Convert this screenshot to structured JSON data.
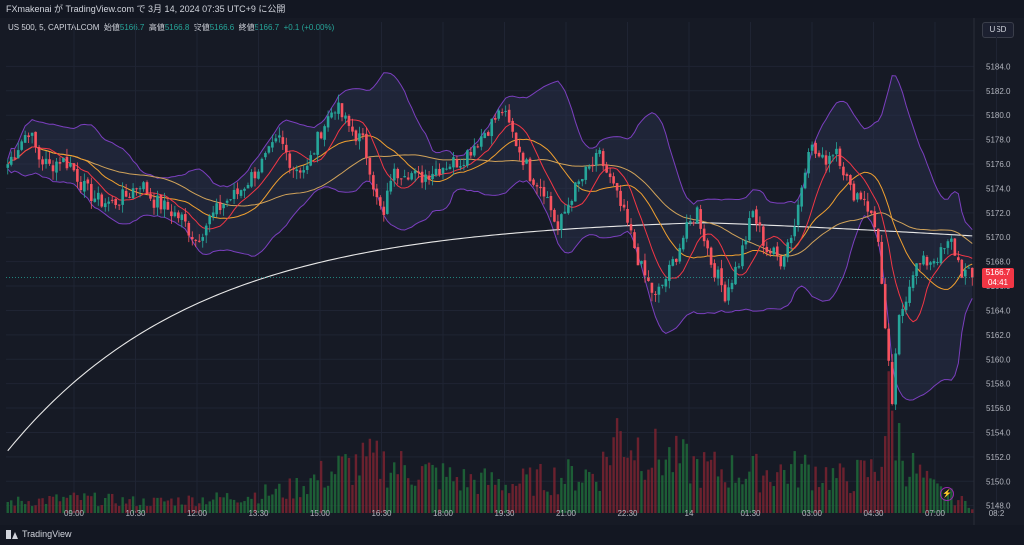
{
  "header": {
    "published_text": "FXmakenai が TradingView.com で 3月 14, 2024 07:35 UTC+9 に公開"
  },
  "legend": {
    "symbol": "US 500, 5, CAPITALCOM",
    "open_label": "始値",
    "open_value": "5166.7",
    "high_label": "高値",
    "high_value": "5166.8",
    "low_label": "安値",
    "low_value": "5166.6",
    "close_label": "終値",
    "close_value": "5166.7",
    "change": "+0.1 (+0.00%)"
  },
  "currency_button": "USD",
  "current_price": {
    "price": "5166.7",
    "countdown": "04:41"
  },
  "footer": {
    "brand": "TradingView"
  },
  "colors": {
    "background": "#161a25",
    "up": "#26a69a",
    "down": "#f7525f",
    "band": "#7b3fbf",
    "ma_fast": "#f23645",
    "ma_mid": "#f0a030",
    "ma_slow": "#d1a35a",
    "ma_long": "#e8e8e8"
  },
  "chart_data": {
    "type": "candlestick",
    "y_ticks": [
      "5184.0",
      "5182.0",
      "5180.0",
      "5178.0",
      "5176.0",
      "5174.0",
      "5172.0",
      "5170.0",
      "5168.0",
      "5166.0",
      "5164.0",
      "5162.0",
      "5160.0",
      "5158.0",
      "5156.0",
      "5154.0",
      "5152.0",
      "5150.0",
      "5148.0"
    ],
    "ylim": [
      5147.4,
      5186.0
    ],
    "x_ticks": [
      "09:00",
      "10:30",
      "12:00",
      "13:30",
      "15:00",
      "16:30",
      "18:00",
      "19:30",
      "21:00",
      "22:30",
      "14",
      "01:30",
      "03:00",
      "04:30",
      "07:00",
      "08:2"
    ],
    "price_path": [
      [
        0,
        5176.0
      ],
      [
        3,
        5177.5
      ],
      [
        6,
        5178.8
      ],
      [
        9,
        5176.5
      ],
      [
        12,
        5175.8
      ],
      [
        15,
        5176.4
      ],
      [
        18,
        5176.0
      ],
      [
        22,
        5174.0
      ],
      [
        26,
        5173.0
      ],
      [
        30,
        5172.8
      ],
      [
        34,
        5173.4
      ],
      [
        38,
        5174.5
      ],
      [
        42,
        5173.0
      ],
      [
        46,
        5172.3
      ],
      [
        50,
        5171.5
      ],
      [
        54,
        5169.8
      ],
      [
        58,
        5171.5
      ],
      [
        62,
        5172.8
      ],
      [
        66,
        5173.6
      ],
      [
        70,
        5175.0
      ],
      [
        74,
        5176.4
      ],
      [
        78,
        5178.0
      ],
      [
        82,
        5175.8
      ],
      [
        86,
        5175.6
      ],
      [
        90,
        5178.8
      ],
      [
        94,
        5180.8
      ],
      [
        98,
        5179.0
      ],
      [
        102,
        5177.8
      ],
      [
        104,
        5175.8
      ],
      [
        106,
        5173.0
      ],
      [
        108,
        5171.6
      ],
      [
        110,
        5175.0
      ],
      [
        114,
        5175.6
      ],
      [
        118,
        5174.8
      ],
      [
        122,
        5175.5
      ],
      [
        126,
        5176.0
      ],
      [
        130,
        5176.3
      ],
      [
        134,
        5177.6
      ],
      [
        138,
        5179.0
      ],
      [
        142,
        5180.4
      ],
      [
        146,
        5177.8
      ],
      [
        150,
        5175.2
      ],
      [
        154,
        5174.0
      ],
      [
        158,
        5170.6
      ],
      [
        162,
        5173.5
      ],
      [
        166,
        5175.2
      ],
      [
        170,
        5176.6
      ],
      [
        174,
        5174.0
      ],
      [
        178,
        5171.0
      ],
      [
        182,
        5167.4
      ],
      [
        186,
        5165.0
      ],
      [
        190,
        5167.2
      ],
      [
        194,
        5170.0
      ],
      [
        198,
        5172.2
      ],
      [
        202,
        5168.0
      ],
      [
        206,
        5165.4
      ],
      [
        210,
        5168.0
      ],
      [
        214,
        5172.0
      ],
      [
        218,
        5169.0
      ],
      [
        222,
        5168.2
      ],
      [
        226,
        5171.0
      ],
      [
        230,
        5177.6
      ],
      [
        234,
        5176.2
      ],
      [
        238,
        5177.4
      ],
      [
        242,
        5173.8
      ],
      [
        246,
        5173.3
      ],
      [
        250,
        5170.0
      ],
      [
        252,
        5162.0
      ],
      [
        254,
        5156.5
      ],
      [
        256,
        5163.2
      ],
      [
        260,
        5167.4
      ],
      [
        264,
        5168.0
      ],
      [
        268,
        5168.6
      ],
      [
        271,
        5169.6
      ],
      [
        274,
        5167.2
      ],
      [
        277,
        5166.7
      ]
    ],
    "volume_path": [
      [
        0,
        3
      ],
      [
        20,
        4
      ],
      [
        40,
        3
      ],
      [
        60,
        4
      ],
      [
        80,
        6
      ],
      [
        95,
        12
      ],
      [
        105,
        14
      ],
      [
        115,
        12
      ],
      [
        130,
        9
      ],
      [
        145,
        8
      ],
      [
        160,
        10
      ],
      [
        170,
        11
      ],
      [
        175,
        22
      ],
      [
        185,
        16
      ],
      [
        200,
        12
      ],
      [
        215,
        11
      ],
      [
        230,
        12
      ],
      [
        240,
        9
      ],
      [
        250,
        12
      ],
      [
        253,
        28
      ],
      [
        258,
        14
      ],
      [
        265,
        7
      ],
      [
        277,
        2
      ]
    ],
    "volume_scale": 30
  }
}
